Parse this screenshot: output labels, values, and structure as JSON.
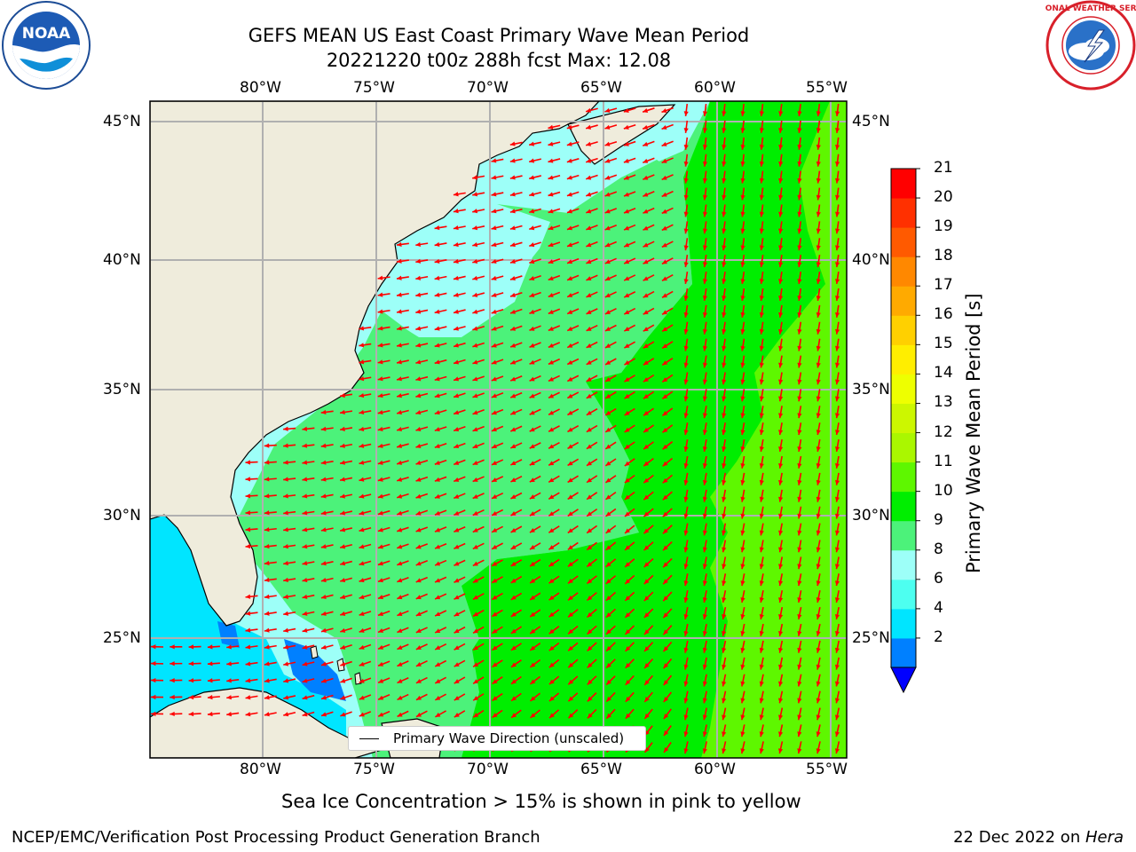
{
  "header": {
    "title_line1": "GEFS MEAN US East Coast Primary Wave Mean Period",
    "title_line2": "20221220 t00z 288h fcst   Max: 12.08"
  },
  "logos": {
    "left": "NOAA",
    "right_text": "NATIONAL WEATHER SERVICE"
  },
  "map": {
    "lon_labels": [
      "80°W",
      "75°W",
      "70°W",
      "65°W",
      "60°W",
      "55°W"
    ],
    "lat_labels": [
      "45°N",
      "40°N",
      "35°N",
      "30°N",
      "25°N"
    ],
    "land_color": "#efecdc",
    "arrow_color": "#ff0000",
    "legend_label": "Primary Wave Direction (unscaled)"
  },
  "colorbar": {
    "title": "Primary Wave Mean Period [s]",
    "ticks": [
      "21",
      "20",
      "19",
      "18",
      "17",
      "16",
      "15",
      "14",
      "13",
      "12",
      "11",
      "10",
      "9",
      "8",
      "6",
      "4",
      "2"
    ],
    "colors_bottom_to_top": [
      "#0080ff",
      "#00e5ff",
      "#4dfff0",
      "#9dfff8",
      "#4cf27a",
      "#00ee00",
      "#5ef700",
      "#aaf700",
      "#ccf700",
      "#eeff00",
      "#ffee00",
      "#ffd000",
      "#ffaa00",
      "#ff8800",
      "#ff5a00",
      "#ff3000",
      "#ff0000"
    ],
    "extend_color": "#0000ff"
  },
  "notes": {
    "sea_ice": "Sea Ice Concentration > 15% is shown in pink to yellow"
  },
  "footer": {
    "left": "NCEP/EMC/Verification Post Processing Product Generation Branch",
    "right_prefix": "22 Dec 2022 on ",
    "right_host": "Hera"
  }
}
